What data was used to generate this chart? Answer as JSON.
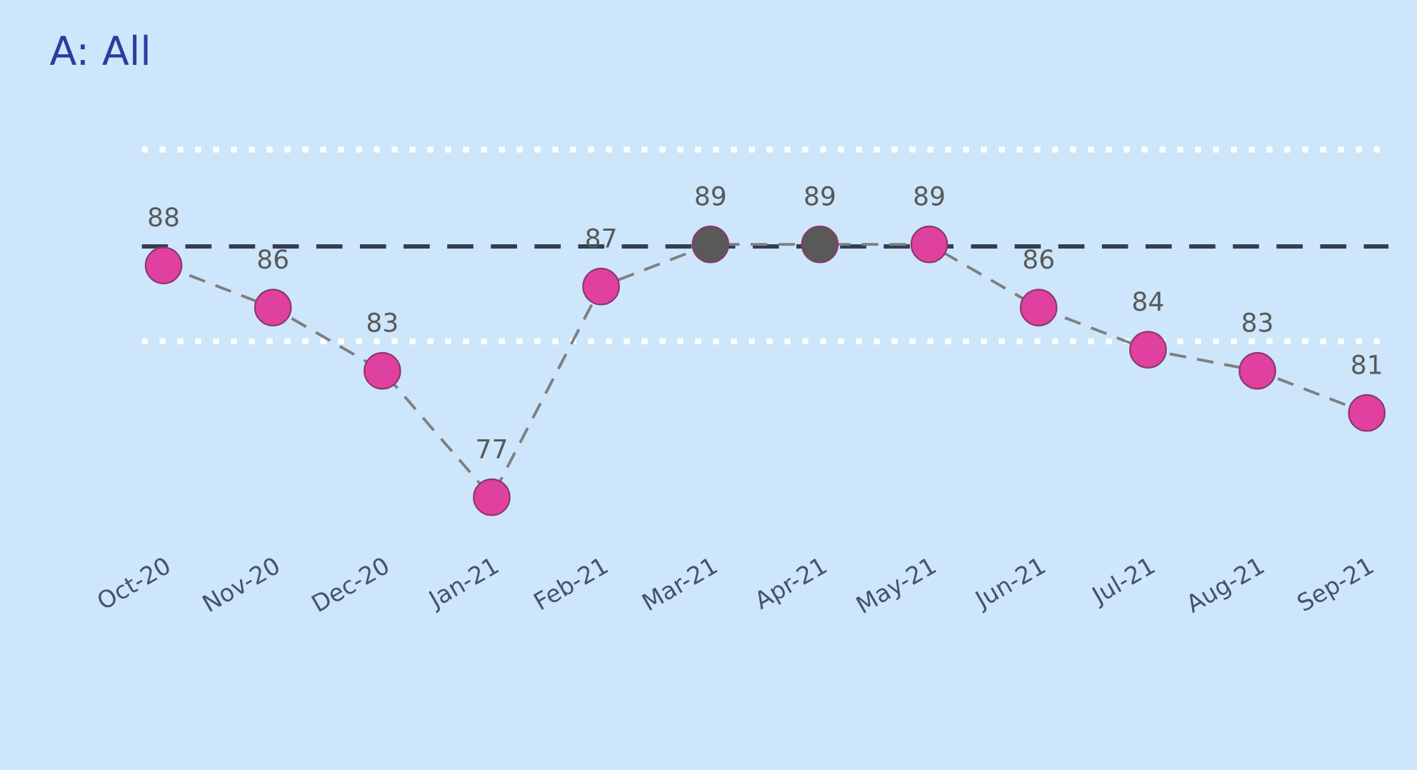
{
  "chart_data": {
    "type": "line",
    "title": "A: All",
    "categories": [
      "Oct-20",
      "Nov-20",
      "Dec-20",
      "Jan-21",
      "Feb-21",
      "Mar-21",
      "Apr-21",
      "May-21",
      "Jun-21",
      "Jul-21",
      "Aug-21",
      "Sep-21"
    ],
    "series": [
      {
        "values": [
          88,
          86,
          83,
          77,
          87,
          89,
          89,
          89,
          86,
          84,
          83,
          81
        ],
        "color": "#7f7f7f",
        "colors": [
          "#e040a0",
          "#e040a0",
          "#e040a0",
          "#e040a0",
          "#e040a0",
          "#595959",
          "#595959",
          "#e040a0",
          "#e040a0",
          "#e040a0",
          "#e040a0",
          "#e040a0"
        ]
      }
    ],
    "marker": "circle",
    "line_style": "dashed",
    "data_labels": true,
    "tick_labels": "x",
    "grid": false,
    "legend": false,
    "ref_lines": [
      {
        "axis": "y",
        "value": 93.5,
        "color": "#ffffff",
        "line_style": "dotted"
      },
      {
        "axis": "y",
        "value": 88.9,
        "color": "#333f4f",
        "line_style": "dashed"
      },
      {
        "axis": "y",
        "value": 84.4,
        "color": "#ffffff",
        "line_style": "dotted"
      }
    ]
  }
}
